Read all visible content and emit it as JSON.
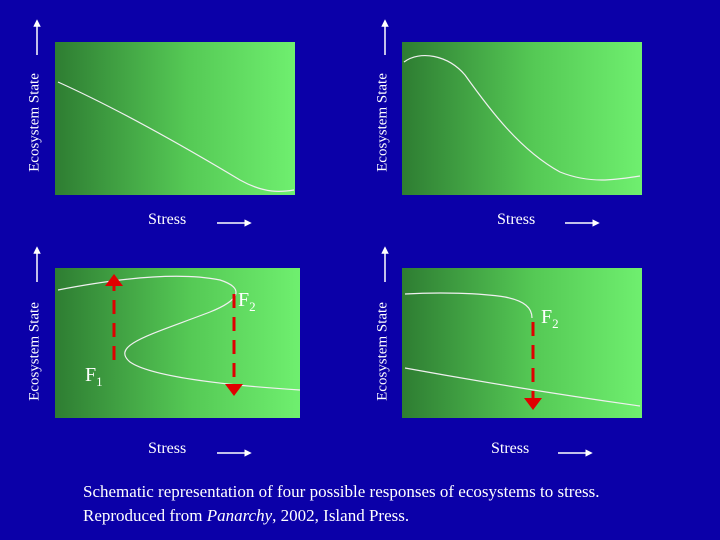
{
  "panels": [
    {
      "id": "p1",
      "ylabel": "Ecosystem State",
      "xlabel": "Stress"
    },
    {
      "id": "p2",
      "ylabel": "Ecosystem State",
      "xlabel": "Stress"
    },
    {
      "id": "p3",
      "ylabel": "Ecosystem State",
      "xlabel": "Stress",
      "markers": [
        {
          "main": "F",
          "sub": "1"
        },
        {
          "main": "F",
          "sub": "2"
        }
      ]
    },
    {
      "id": "p4",
      "ylabel": "Ecosystem State",
      "xlabel": "Stress",
      "markers": [
        {
          "main": "F",
          "sub": "2"
        }
      ]
    }
  ],
  "caption": {
    "line1": "Schematic representation of four possible responses of ecosystems to stress.",
    "line2_pre": "Reproduced from ",
    "line2_italic": "Panarchy",
    "line2_post": ", 2002, Island Press."
  },
  "colors": {
    "background": "#0b00a8",
    "panel_dark": "#2e7d32",
    "panel_light": "#6fef6f",
    "curve": "#f0f0f0",
    "arrow_red": "#e00000"
  }
}
